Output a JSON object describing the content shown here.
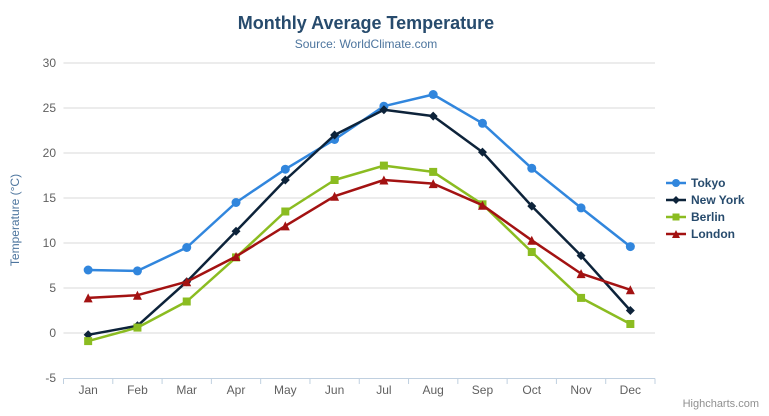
{
  "header": {
    "title": "Monthly Average Temperature",
    "subtitle": "Source: WorldClimate.com"
  },
  "export_menu": {
    "icon": "hamburger-menu-icon"
  },
  "credit": {
    "label": "Highcharts.com"
  },
  "ui_colors": {
    "title": "#274b6d",
    "subtitle": "#4d759e",
    "axis_label": "#606060",
    "axis_title": "#4d759e",
    "gridline": "#d8d8d8",
    "axis_line": "#c0d0e0",
    "legend_text": "#274b6d",
    "credit_text": "#909090"
  },
  "chart_data": {
    "type": "line",
    "title": "Monthly Average Temperature",
    "subtitle": "Source: WorldClimate.com",
    "categories": [
      "Jan",
      "Feb",
      "Mar",
      "Apr",
      "May",
      "Jun",
      "Jul",
      "Aug",
      "Sep",
      "Oct",
      "Nov",
      "Dec"
    ],
    "series": [
      {
        "name": "Tokyo",
        "color": "#3186dd",
        "marker": "circle",
        "values": [
          7.0,
          6.9,
          9.5,
          14.5,
          18.2,
          21.5,
          25.2,
          26.5,
          23.3,
          18.3,
          13.9,
          9.6
        ]
      },
      {
        "name": "New York",
        "color": "#0d233a",
        "marker": "diamond",
        "values": [
          -0.2,
          0.8,
          5.7,
          11.3,
          17.0,
          22.0,
          24.8,
          24.1,
          20.1,
          14.1,
          8.6,
          2.5
        ]
      },
      {
        "name": "Berlin",
        "color": "#8bbc21",
        "marker": "square",
        "values": [
          -0.9,
          0.6,
          3.5,
          8.4,
          13.5,
          17.0,
          18.6,
          17.9,
          14.3,
          9.0,
          3.9,
          1.0
        ]
      },
      {
        "name": "London",
        "color": "#a31212",
        "marker": "triangle",
        "values": [
          3.9,
          4.2,
          5.7,
          8.5,
          11.9,
          15.2,
          17.0,
          16.6,
          14.2,
          10.3,
          6.6,
          4.8
        ]
      }
    ],
    "xlabel": "",
    "ylabel": "Temperature (°C)",
    "ylim": [
      -5,
      30
    ],
    "yticks": [
      -5,
      0,
      5,
      10,
      15,
      20,
      25,
      30
    ],
    "grid": true,
    "legend_position": "right"
  }
}
